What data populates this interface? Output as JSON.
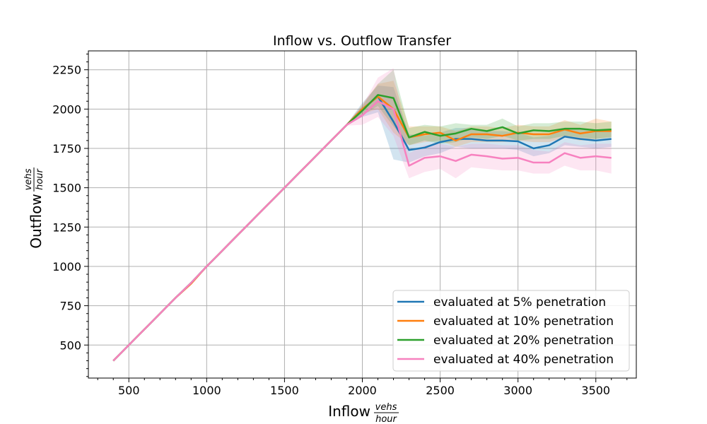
{
  "chart_data": {
    "type": "line",
    "title": "Inflow vs. Outflow Transfer",
    "xlabel": "Inflow",
    "ylabel": "Outflow",
    "unit": {
      "numerator": "vehs",
      "denominator": "hour"
    },
    "xlim": [
      240,
      3760
    ],
    "ylim": [
      290,
      2370
    ],
    "xticks": [
      500,
      1000,
      1500,
      2000,
      2500,
      3000,
      3500
    ],
    "yticks": [
      500,
      750,
      1000,
      1250,
      1500,
      1750,
      2000,
      2250
    ],
    "grid": true,
    "legend_position": "lower-right",
    "x": [
      400,
      500,
      600,
      700,
      800,
      900,
      1000,
      1100,
      1200,
      1300,
      1400,
      1500,
      1600,
      1700,
      1800,
      1900,
      2000,
      2100,
      2200,
      2300,
      2400,
      2500,
      2600,
      2700,
      2800,
      2900,
      3000,
      3100,
      3200,
      3300,
      3400,
      3500,
      3600
    ],
    "series": [
      {
        "name": "evaluated at 5% penetration",
        "color": "#1f77b4",
        "values": [
          400,
          500,
          600,
          700,
          800,
          895,
          1000,
          1100,
          1200,
          1300,
          1400,
          1500,
          1600,
          1700,
          1800,
          1900,
          2000,
          2080,
          1920,
          1740,
          1755,
          1790,
          1810,
          1810,
          1800,
          1800,
          1795,
          1750,
          1770,
          1825,
          1810,
          1800,
          1810
        ],
        "lower": [
          400,
          500,
          600,
          700,
          800,
          892,
          998,
          1098,
          1198,
          1298,
          1398,
          1498,
          1598,
          1698,
          1798,
          1895,
          1950,
          1980,
          1680,
          1660,
          1700,
          1720,
          1760,
          1750,
          1750,
          1750,
          1740,
          1700,
          1720,
          1770,
          1760,
          1750,
          1760
        ],
        "upper": [
          400,
          500,
          600,
          700,
          800,
          898,
          1002,
          1102,
          1202,
          1302,
          1402,
          1502,
          1602,
          1702,
          1802,
          1905,
          2040,
          2150,
          2140,
          1840,
          1830,
          1850,
          1880,
          1880,
          1860,
          1860,
          1850,
          1820,
          1830,
          1880,
          1870,
          1860,
          1870
        ]
      },
      {
        "name": "evaluated at 10% penetration",
        "color": "#ff7f0e",
        "values": [
          400,
          500,
          600,
          700,
          800,
          890,
          1000,
          1100,
          1200,
          1300,
          1400,
          1500,
          1600,
          1700,
          1800,
          1900,
          2000,
          2080,
          2000,
          1820,
          1840,
          1850,
          1800,
          1840,
          1840,
          1830,
          1850,
          1840,
          1840,
          1870,
          1845,
          1860,
          1860
        ],
        "lower": [
          400,
          500,
          600,
          700,
          800,
          886,
          998,
          1098,
          1198,
          1298,
          1398,
          1498,
          1598,
          1698,
          1798,
          1895,
          1970,
          2000,
          1850,
          1770,
          1790,
          1800,
          1760,
          1790,
          1790,
          1790,
          1800,
          1790,
          1790,
          1820,
          1800,
          1810,
          1820
        ],
        "upper": [
          400,
          500,
          600,
          700,
          800,
          894,
          1002,
          1102,
          1202,
          1302,
          1402,
          1502,
          1602,
          1702,
          1802,
          1905,
          2030,
          2160,
          2180,
          1890,
          1890,
          1890,
          1860,
          1890,
          1890,
          1880,
          1900,
          1890,
          1890,
          1930,
          1900,
          1940,
          1920
        ]
      },
      {
        "name": "evaluated at 20% penetration",
        "color": "#2ca02c",
        "values": [
          400,
          500,
          600,
          700,
          800,
          895,
          1000,
          1100,
          1200,
          1300,
          1400,
          1500,
          1600,
          1700,
          1800,
          1900,
          1990,
          2090,
          2070,
          1820,
          1855,
          1830,
          1845,
          1875,
          1860,
          1885,
          1845,
          1865,
          1860,
          1875,
          1875,
          1865,
          1870
        ],
        "lower": [
          400,
          500,
          600,
          700,
          800,
          892,
          998,
          1098,
          1198,
          1298,
          1398,
          1498,
          1598,
          1698,
          1798,
          1895,
          1960,
          2020,
          1890,
          1770,
          1800,
          1780,
          1790,
          1820,
          1810,
          1830,
          1800,
          1810,
          1810,
          1830,
          1820,
          1810,
          1820
        ],
        "upper": [
          400,
          500,
          600,
          700,
          800,
          898,
          1002,
          1102,
          1202,
          1302,
          1402,
          1502,
          1602,
          1702,
          1802,
          1905,
          2020,
          2160,
          2250,
          1880,
          1900,
          1890,
          1910,
          1900,
          1900,
          1940,
          1890,
          1910,
          1910,
          1920,
          1920,
          1910,
          1920
        ]
      },
      {
        "name": "evaluated at 40% penetration",
        "color": "#f781bf",
        "values": [
          400,
          500,
          600,
          700,
          800,
          895,
          1000,
          1100,
          1200,
          1300,
          1400,
          1500,
          1600,
          1700,
          1800,
          1900,
          1960,
          2050,
          2000,
          1640,
          1690,
          1700,
          1670,
          1710,
          1700,
          1685,
          1690,
          1660,
          1660,
          1720,
          1690,
          1700,
          1690
        ],
        "lower": [
          400,
          500,
          600,
          700,
          800,
          892,
          998,
          1098,
          1198,
          1298,
          1398,
          1498,
          1598,
          1698,
          1798,
          1895,
          1900,
          1950,
          1830,
          1560,
          1600,
          1620,
          1560,
          1630,
          1620,
          1610,
          1610,
          1590,
          1590,
          1640,
          1610,
          1610,
          1590
        ],
        "upper": [
          400,
          500,
          600,
          700,
          800,
          898,
          1002,
          1102,
          1202,
          1302,
          1402,
          1502,
          1602,
          1702,
          1802,
          1905,
          2020,
          2200,
          2260,
          1720,
          1770,
          1780,
          1760,
          1780,
          1780,
          1770,
          1770,
          1740,
          1730,
          1790,
          1770,
          1780,
          1780
        ]
      }
    ]
  }
}
